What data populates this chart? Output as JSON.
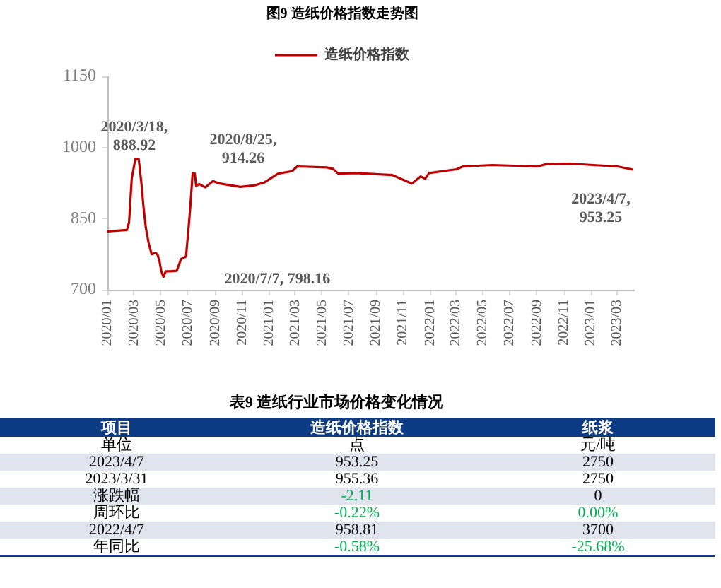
{
  "chart_data": [
    {
      "type": "line",
      "title": "图9 造纸价格指数走势图",
      "x": [
        "2020-01-01",
        "2020-02-14",
        "2020-02-19",
        "2020-02-25",
        "2020-03-04",
        "2020-03-12",
        "2020-03-18",
        "2020-03-23",
        "2020-03-28",
        "2020-04-03",
        "2020-04-10",
        "2020-04-19",
        "2020-04-24",
        "2020-04-28",
        "2020-05-02",
        "2020-05-07",
        "2020-05-12",
        "2020-05-22",
        "2020-06-06",
        "2020-06-16",
        "2020-06-27",
        "2020-07-02",
        "2020-07-07",
        "2020-07-12",
        "2020-07-17",
        "2020-07-20",
        "2020-07-27",
        "2020-08-10",
        "2020-08-27",
        "2020-09-12",
        "2020-10-28",
        "2020-11-28",
        "2020-12-21",
        "2021-01-22",
        "2021-02-22",
        "2021-03-06",
        "2021-05-12",
        "2021-05-26",
        "2021-06-07",
        "2021-07-17",
        "2021-10-07",
        "2021-11-21",
        "2021-12-11",
        "2021-12-21",
        "2021-12-30",
        "2022-03-02",
        "2022-03-17",
        "2022-05-22",
        "2022-09-02",
        "2022-09-22",
        "2022-11-16",
        "2023-01-06",
        "2023-03-02",
        "2023-04-07"
      ],
      "series": [
        {
          "name": "造纸价格指数",
          "color": "#c00000",
          "values": [
            823,
            826,
            842,
            934,
            975,
            975,
            924,
            872,
            831,
            800,
            775,
            778,
            773,
            760,
            739,
            727,
            739,
            739,
            740,
            765,
            770,
            821,
            878,
            945,
            945,
            919,
            923,
            916,
            929,
            924,
            917,
            920,
            926,
            945,
            950,
            960,
            958,
            955,
            945,
            946,
            942,
            924,
            939,
            934,
            946,
            954,
            960,
            963,
            960,
            965,
            966,
            963,
            960,
            953.25
          ]
        }
      ],
      "xlim": [
        "2020-01-01",
        "2023-04-07"
      ],
      "xticks": [
        {
          "value": "2020-01",
          "label": "2020/01"
        },
        {
          "value": "2020-03",
          "label": "2020/03"
        },
        {
          "value": "2020-05",
          "label": "2020/05"
        },
        {
          "value": "2020-07",
          "label": "2020/07"
        },
        {
          "value": "2020-09",
          "label": "2020/09"
        },
        {
          "value": "2020-11",
          "label": "2020/11"
        },
        {
          "value": "2021-01",
          "label": "2021/01"
        },
        {
          "value": "2021-03",
          "label": "2021/03"
        },
        {
          "value": "2021-05",
          "label": "2021/05"
        },
        {
          "value": "2021-07",
          "label": "2021/07"
        },
        {
          "value": "2021-09",
          "label": "2021/09"
        },
        {
          "value": "2021-11",
          "label": "2021/11"
        },
        {
          "value": "2022-01",
          "label": "2022/01"
        },
        {
          "value": "2022-03",
          "label": "2022/03"
        },
        {
          "value": "2022-05",
          "label": "2022/05"
        },
        {
          "value": "2022-07",
          "label": "2022/07"
        },
        {
          "value": "2022-09",
          "label": "2022/09"
        },
        {
          "value": "2022-11",
          "label": "2022/11"
        },
        {
          "value": "2023-01",
          "label": "2023/01"
        },
        {
          "value": "2023-03",
          "label": "2023/03"
        }
      ],
      "ylim": [
        700,
        1150
      ],
      "yticks": [
        700,
        850,
        1000,
        1150
      ],
      "grid": false,
      "legend": "top",
      "marker": "none",
      "line_style": "solid",
      "annotations": [
        "2020/3/18, 888.92",
        "2020/8/25, 914.26",
        "2020/7/7, 798.16",
        {
          "text": "2023/4/7, 953.25",
          "x": "2023-04-07",
          "y": 953.25
        }
      ]
    },
    {
      "type": "other",
      "title": "表9 造纸行业市场价格变化情况",
      "ylabel": "项目",
      "categories": [
        "造纸价格指数",
        "纸浆"
      ],
      "y_categories": [
        "单位",
        "2023/4/7",
        "2023/3/31",
        "涨跌幅",
        "周环比",
        "2022/4/7",
        "年同比"
      ],
      "cell_labels": [
        [
          "点",
          "元/吨"
        ],
        [
          "953.25",
          "2750"
        ],
        [
          "955.36",
          "2750"
        ],
        [
          "-2.11",
          "0"
        ],
        [
          "-0.22%",
          "0.00%"
        ],
        [
          "958.81",
          "3700"
        ],
        [
          "-0.58%",
          "-25.68%"
        ]
      ],
      "colors": [
        [
          null,
          null
        ],
        [
          null,
          null
        ],
        [
          null,
          null
        ],
        [
          "#00b050",
          null
        ],
        [
          "#00b050",
          "#00b050"
        ],
        [
          null,
          null
        ],
        [
          "#00b050",
          "#00b050"
        ]
      ]
    }
  ]
}
